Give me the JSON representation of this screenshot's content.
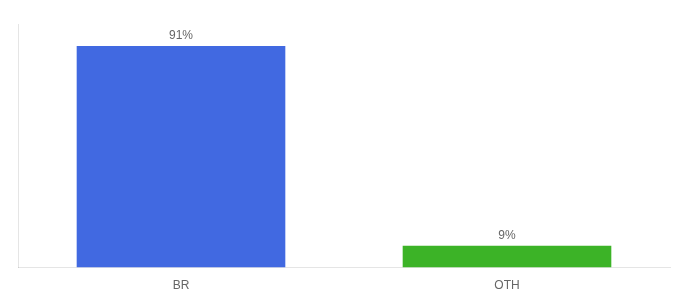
{
  "chart_data": {
    "type": "bar",
    "categories": [
      "BR",
      "OTH"
    ],
    "values": [
      91,
      9
    ],
    "value_labels": [
      "91%",
      "9%"
    ],
    "colors": [
      "#4169e1",
      "#3cb327"
    ],
    "ylim": [
      0,
      100
    ],
    "grid": false,
    "data_labels": true,
    "tick_labels": "x"
  }
}
